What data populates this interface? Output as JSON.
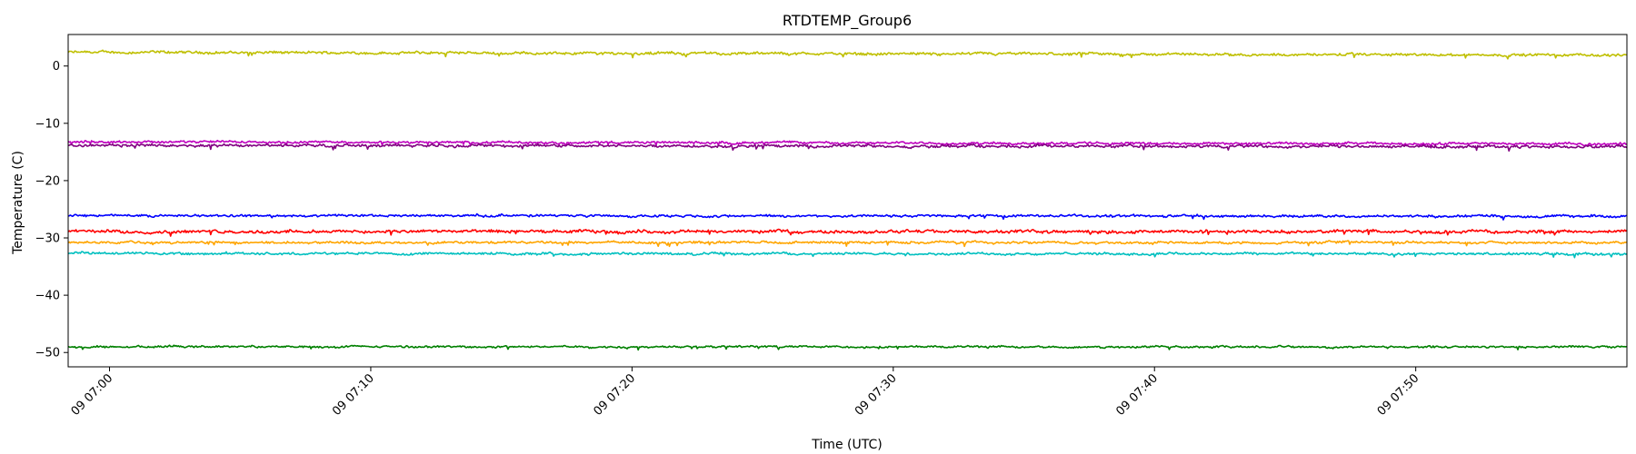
{
  "chart_data": {
    "type": "line",
    "title": "RTDTEMP_Group6",
    "xlabel": "Time (UTC)",
    "ylabel": "Temperature (C)",
    "x_domain": [
      "09 06:58:25",
      "09 07:58:05"
    ],
    "ylim": [
      -52.5,
      5.5
    ],
    "xticks": [
      {
        "time": "09 07:00",
        "label": "09 07:00"
      },
      {
        "time": "09 07:10",
        "label": "09 07:10"
      },
      {
        "time": "09 07:20",
        "label": "09 07:20"
      },
      {
        "time": "09 07:30",
        "label": "09 07:30"
      },
      {
        "time": "09 07:40",
        "label": "09 07:40"
      },
      {
        "time": "09 07:50",
        "label": "09 07:50"
      }
    ],
    "yticks": [
      {
        "value": 0,
        "label": "0"
      },
      {
        "value": -10,
        "label": "−10"
      },
      {
        "value": -20,
        "label": "−20"
      },
      {
        "value": -30,
        "label": "−30"
      },
      {
        "value": -40,
        "label": "−40"
      },
      {
        "value": -50,
        "label": "−50"
      }
    ],
    "grid": false,
    "legend": "none",
    "series": [
      {
        "color": "#bfbf00",
        "start": 2.4,
        "end": 1.9,
        "noise": 0.35
      },
      {
        "color": "#bf00bf",
        "start": -13.2,
        "end": -13.6,
        "noise": 0.3
      },
      {
        "color": "#800080",
        "start": -13.8,
        "end": -14.1,
        "noise": 0.35
      },
      {
        "color": "#0000ff",
        "start": -26.1,
        "end": -26.2,
        "noise": 0.3
      },
      {
        "color": "#ff0000",
        "start": -28.9,
        "end": -28.9,
        "noise": 0.4
      },
      {
        "color": "#ffa500",
        "start": -30.8,
        "end": -30.8,
        "noise": 0.3
      },
      {
        "color": "#00bfbf",
        "start": -32.7,
        "end": -32.8,
        "noise": 0.3
      },
      {
        "color": "#008000",
        "start": -49.0,
        "end": -49.0,
        "noise": 0.25
      }
    ]
  }
}
